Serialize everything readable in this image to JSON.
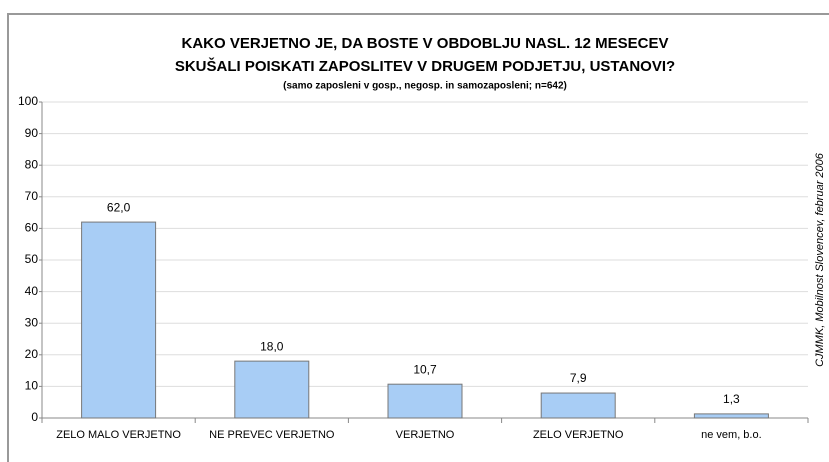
{
  "chart_data": {
    "type": "bar",
    "title": [
      "KAKO VERJETNO JE, DA BOSTE V OBDOBLJU NASL. 12 MESECEV",
      "SKUŠALI POISKATI ZAPOSLITEV V DRUGEM PODJETJU, USTANOVI?"
    ],
    "subtitle": "(samo zaposleni v gosp., negosp. in samozaposleni; n=642)",
    "source": "CJMMK, Mobilnost Slovencev, februar 2006",
    "categories": [
      "ZELO MALO VERJETNO",
      "NE PREVEC VERJETNO",
      "VERJETNO",
      "ZELO VERJETNO",
      "ne vem, b.o."
    ],
    "values": [
      62.0,
      18.0,
      10.7,
      7.9,
      1.3
    ],
    "value_labels": [
      "62,0",
      "18,0",
      "10,7",
      "7,9",
      "1,3"
    ],
    "color": "#a8cdf5",
    "ylim": [
      0,
      100
    ],
    "yticks": [
      0,
      10,
      20,
      30,
      40,
      50,
      60,
      70,
      80,
      90,
      100
    ],
    "grid": true
  }
}
